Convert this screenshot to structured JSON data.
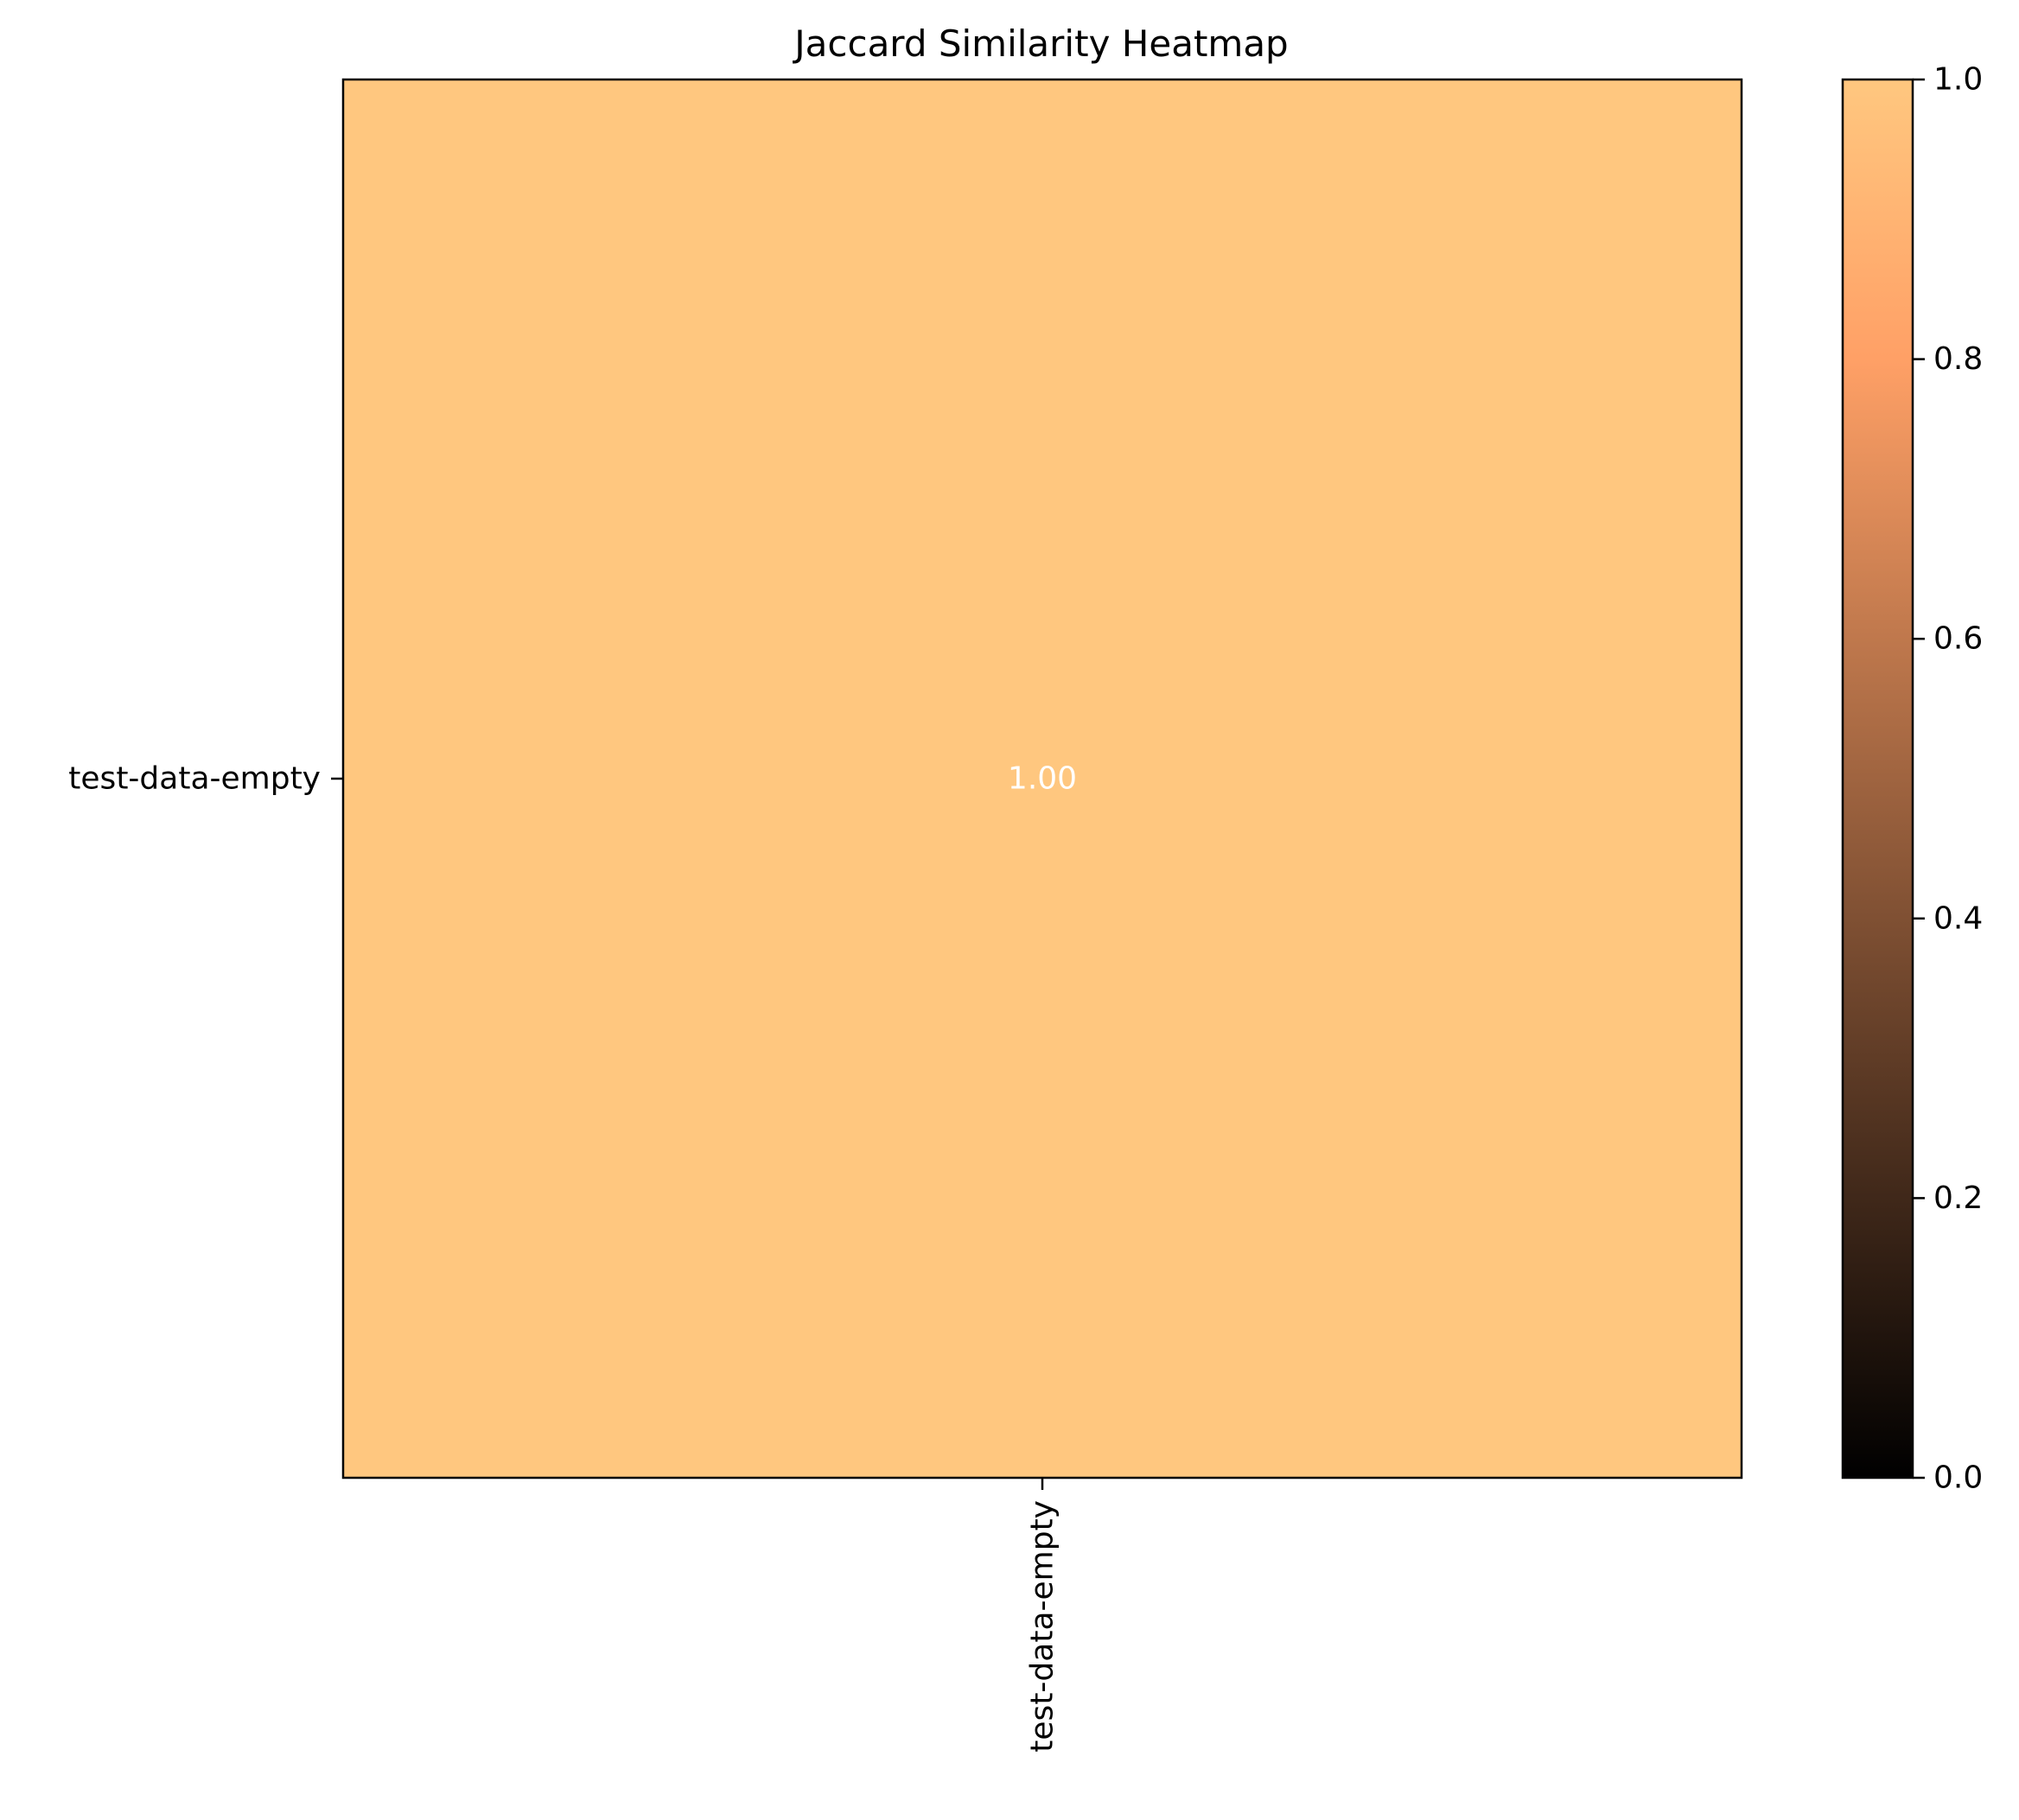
{
  "chart_data": {
    "type": "heatmap",
    "title": "Jaccard Similarity Heatmap",
    "rows": [
      "test-data-empty"
    ],
    "columns": [
      "test-data-empty"
    ],
    "values": [
      [
        1.0
      ]
    ],
    "cell_labels": [
      [
        "1.00"
      ]
    ],
    "cell_label_color": "#ffffff",
    "colormap": "copper",
    "colormap_stops": [
      "#000000",
      "#ffc77f"
    ],
    "value_range": [
      0,
      1
    ],
    "colorbar": {
      "ticks": [
        0,
        0.2,
        0.4,
        0.6,
        0.8,
        1.0
      ],
      "tick_labels": [
        "0.0",
        "0.2",
        "0.4",
        "0.6",
        "0.8",
        "1.0"
      ],
      "position": "right"
    },
    "grid": false
  }
}
